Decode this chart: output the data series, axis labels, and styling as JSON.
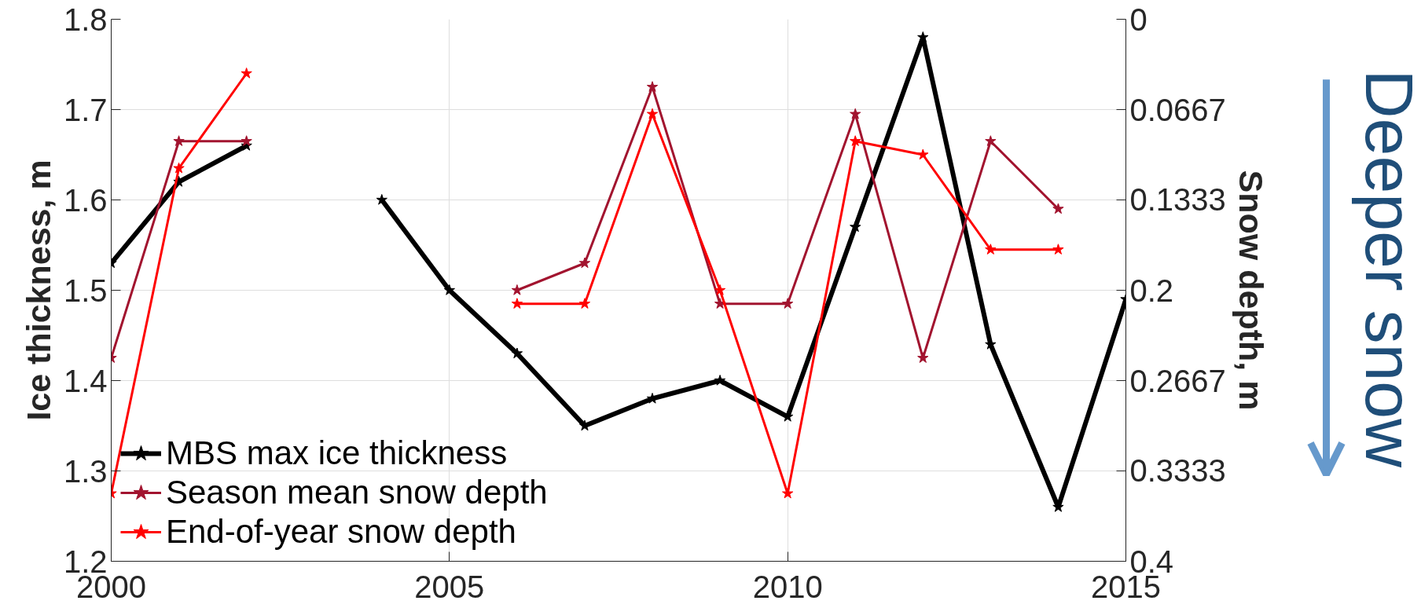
{
  "chart_data": {
    "type": "line",
    "x": [
      2000,
      2001,
      2002,
      2003,
      2004,
      2005,
      2006,
      2007,
      2008,
      2009,
      2010,
      2011,
      2012,
      2013,
      2014,
      2015
    ],
    "xlim": [
      2000,
      2015
    ],
    "xticks": [
      2000,
      2005,
      2010,
      2015
    ],
    "ylim": [
      1.2,
      1.8
    ],
    "yticks": [
      1.2,
      1.3,
      1.4,
      1.5,
      1.6,
      1.7,
      1.8
    ],
    "y2lim": [
      0.4,
      0
    ],
    "y2ticks": [
      0,
      0.0667,
      0.1333,
      0.2,
      0.2667,
      0.3333,
      0.4
    ],
    "ylabel": "Ice thickness, m",
    "y2label": "Snow depth, m",
    "series": [
      {
        "name": "MBS max ice thickness",
        "color": "#000000",
        "values": [
          1.53,
          1.62,
          1.66,
          null,
          1.6,
          1.5,
          1.43,
          1.35,
          1.38,
          1.4,
          1.36,
          1.57,
          1.78,
          1.44,
          1.26,
          1.49
        ]
      },
      {
        "name": "Season mean snow depth",
        "color": "#a2142f",
        "axis": "y2",
        "values": [
          0.25,
          0.09,
          0.09,
          null,
          null,
          null,
          0.2,
          0.18,
          0.05,
          0.21,
          0.21,
          0.07,
          0.25,
          0.09,
          0.14,
          null
        ]
      },
      {
        "name": "End-of-year snow depth",
        "color": "#ff0000",
        "axis": "y2",
        "values": [
          0.35,
          0.11,
          0.04,
          null,
          null,
          null,
          0.21,
          0.21,
          0.07,
          0.2,
          0.35,
          0.09,
          0.1,
          0.17,
          0.17,
          null
        ]
      }
    ],
    "grid": true,
    "legend": "bottom left",
    "marker": "star",
    "line_style": "solid",
    "annotations": [
      "Deeper snow"
    ]
  }
}
